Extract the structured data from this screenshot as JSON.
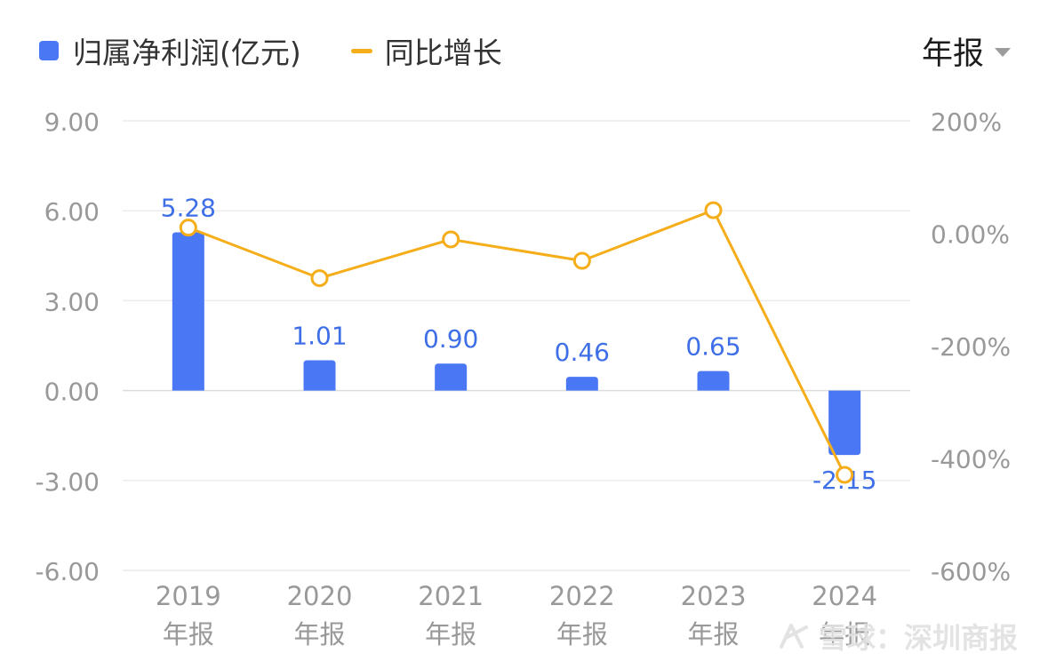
{
  "legend": {
    "bar_label": "归属净利润(亿元)",
    "line_label": "同比增长"
  },
  "period_select": {
    "value": "年报"
  },
  "watermark": {
    "text": "雪球：深圳商报"
  },
  "colors": {
    "bar": "#4a78f5",
    "line": "#f5ad1a",
    "value_label": "#3e6fe6"
  },
  "chart_data": {
    "type": "bar",
    "categories": [
      "2019",
      "2020",
      "2021",
      "2022",
      "2023",
      "2024"
    ],
    "category_sublabel": "年报",
    "series": [
      {
        "name": "归属净利润(亿元)",
        "type": "bar",
        "axis": "left",
        "values": [
          5.28,
          1.01,
          0.9,
          0.46,
          0.65,
          -2.15
        ],
        "labels": [
          "5.28",
          "1.01",
          "0.90",
          "0.46",
          "0.65",
          "-2.15"
        ]
      },
      {
        "name": "同比增长",
        "type": "line",
        "axis": "right",
        "values": [
          10,
          -80,
          -11,
          -49,
          41,
          -430
        ]
      }
    ],
    "left_axis": {
      "ylim": [
        -6,
        9
      ],
      "ticks": [
        9,
        6,
        3,
        0,
        -3,
        -6
      ],
      "tick_labels": [
        "9.00",
        "6.00",
        "3.00",
        "0.00",
        "-3.00",
        "-6.00"
      ]
    },
    "right_axis": {
      "ylim": [
        -600,
        200
      ],
      "ticks": [
        200,
        0,
        -200,
        -400,
        -600
      ],
      "tick_labels": [
        "200%",
        "0.00%",
        "-200%",
        "-400%",
        "-600%"
      ]
    },
    "grid": true,
    "legend_position": "top-left"
  }
}
